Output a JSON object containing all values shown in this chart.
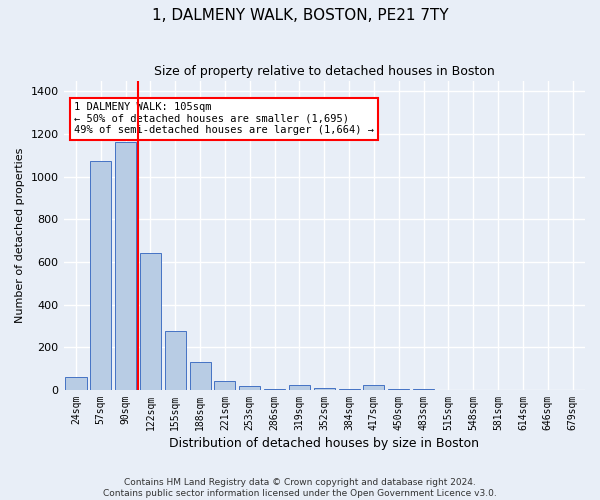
{
  "title": "1, DALMENY WALK, BOSTON, PE21 7TY",
  "subtitle": "Size of property relative to detached houses in Boston",
  "xlabel": "Distribution of detached houses by size in Boston",
  "ylabel": "Number of detached properties",
  "footnote": "Contains HM Land Registry data © Crown copyright and database right 2024.\nContains public sector information licensed under the Open Government Licence v3.0.",
  "categories": [
    "24sqm",
    "57sqm",
    "90sqm",
    "122sqm",
    "155sqm",
    "188sqm",
    "221sqm",
    "253sqm",
    "286sqm",
    "319sqm",
    "352sqm",
    "384sqm",
    "417sqm",
    "450sqm",
    "483sqm",
    "515sqm",
    "548sqm",
    "581sqm",
    "614sqm",
    "646sqm",
    "679sqm"
  ],
  "values": [
    60,
    1075,
    1160,
    640,
    275,
    130,
    40,
    20,
    5,
    25,
    10,
    5,
    25,
    5,
    3,
    2,
    1,
    1,
    1,
    0,
    0
  ],
  "bar_color": "#b8cce4",
  "bar_edge_color": "#4472c4",
  "vline_x": 2.5,
  "vline_color": "red",
  "annotation_text": "1 DALMENY WALK: 105sqm\n← 50% of detached houses are smaller (1,695)\n49% of semi-detached houses are larger (1,664) →",
  "annotation_box_color": "white",
  "annotation_box_edge": "red",
  "ylim": [
    0,
    1450
  ],
  "yticks": [
    0,
    200,
    400,
    600,
    800,
    1000,
    1200,
    1400
  ],
  "bg_color": "#e8eef7",
  "plot_bg_color": "#e8eef7",
  "title_fontsize": 11,
  "subtitle_fontsize": 9,
  "grid_color": "white"
}
